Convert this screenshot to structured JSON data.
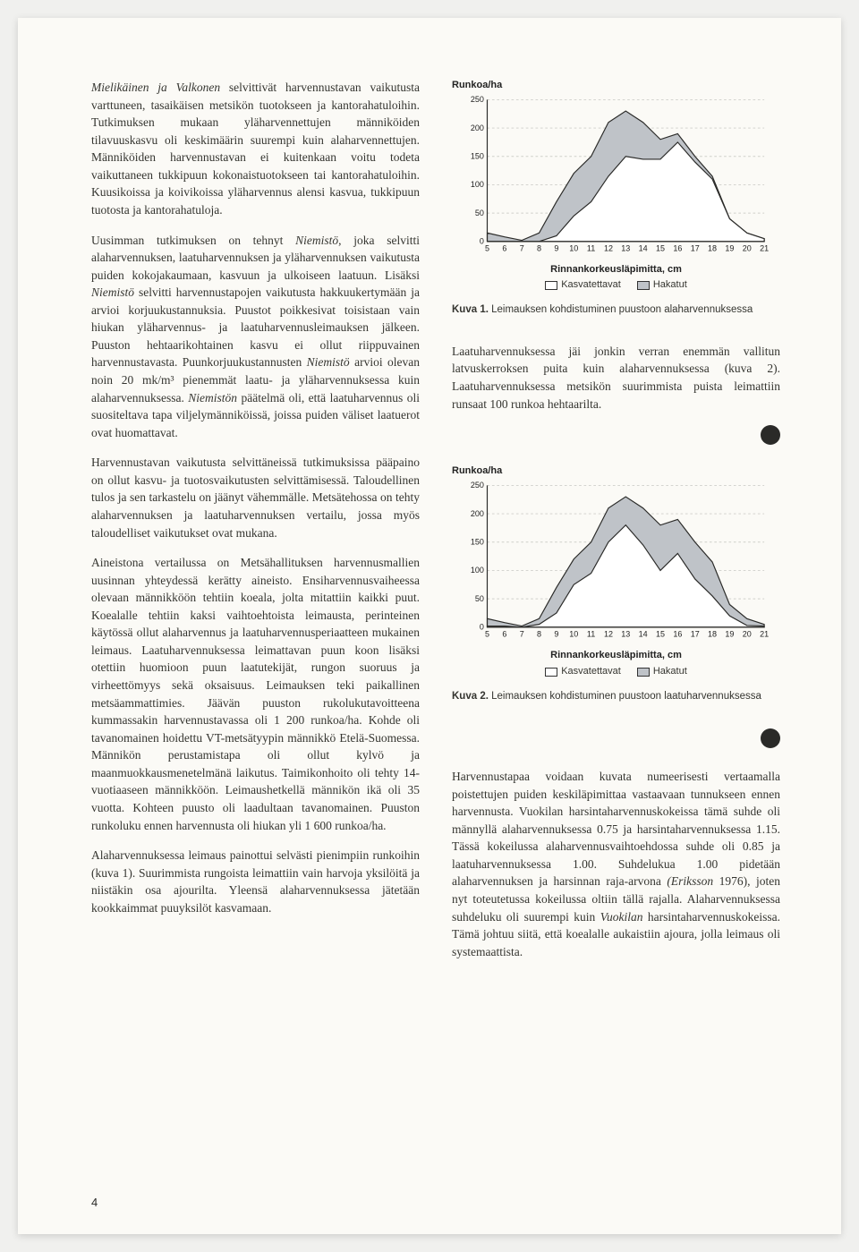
{
  "page_number": "4",
  "colors": {
    "page_bg": "#fbfaf6",
    "text": "#353530",
    "chart_fill_hakatut": "#bfc3c8",
    "chart_fill_kasvatettavat": "#ffffff",
    "chart_line": "#2a2a28",
    "grid": "#cfcfca"
  },
  "col1": {
    "p1_a": "Mielikäinen ja Valkonen",
    "p1_b": " selvittivät harvennustavan vaikutusta varttuneen, tasaikäisen metsikön tuotokseen ja kantorahatuloihin. Tutkimuksen mukaan yläharvennettujen männiköiden tilavuuskasvu oli keskimäärin suurempi kuin alaharvennettujen. Männiköiden harvennustavan ei kuitenkaan voitu todeta vaikuttaneen tukkipuun kokonaistuotokseen tai kantorahatuloihin. Kuusikoissa ja koivikoissa yläharvennus alensi kasvua, tukkipuun tuotosta ja kantorahatuloja.",
    "p2_a": "Uusimman tutkimuksen on tehnyt ",
    "p2_b": "Niemistö",
    "p2_c": ", joka selvitti alaharvennuksen, laatuharvennuksen ja yläharvennuksen vaikutusta puiden kokojakaumaan, kasvuun ja ulkoiseen laatuun. Lisäksi ",
    "p2_d": "Niemistö",
    "p2_e": " selvitti harvennustapojen vaikutusta hakkuukertymään ja arvioi korjuukustannuksia. Puustot poikkesivat toisistaan vain hiukan yläharvennus- ja laatuharvennusleimauksen jälkeen. Puuston hehtaarikohtainen kasvu ei ollut riippuvainen harvennustavasta. Puunkorjuukustannusten ",
    "p2_f": "Niemistö",
    "p2_g": " arvioi olevan noin 20 mk/m³ pienemmät laatu- ja yläharvennuksessa kuin alaharvennuksessa. ",
    "p2_h": "Niemistön",
    "p2_i": " päätelmä oli, että laatuharvennus oli suositeltava tapa viljelymänniköissä, joissa puiden väliset laatuerot ovat huomattavat.",
    "p3": "Harvennustavan vaikutusta selvittäneissä tutkimuksissa pääpaino on ollut kasvu- ja tuotosvaikutusten selvittämisessä. Taloudellinen tulos ja sen tarkastelu on jäänyt vähemmälle. Metsätehossa on tehty alaharvennuksen ja laatuharvennuksen vertailu, jossa myös taloudelliset vaikutukset ovat mukana.",
    "p4": "Aineistona vertailussa on Metsähallituksen harvennusmallien uusinnan yhteydessä kerätty aineisto. Ensiharvennusvaiheessa olevaan männikköön tehtiin koeala, jolta mitattiin kaikki puut. Koealalle tehtiin kaksi vaihtoehtoista leimausta, perinteinen käytössä ollut alaharvennus ja laatuharvennusperiaatteen mukainen leimaus. Laatuharvennuksessa leimattavan puun koon lisäksi otettiin huomioon puun laatutekijät, rungon suoruus ja virheettömyys sekä oksaisuus. Leimauksen teki paikallinen metsäammattimies. Jäävän puuston rukolukutavoitteena kummassakin harvennustavassa oli 1 200 runkoa/ha. Kohde oli tavanomainen hoidettu VT-metsätyypin männikkö Etelä-Suomessa. Männikön perustamistapa oli ollut kylvö ja maanmuokkausmenetelmänä laikutus. Taimikonhoito oli tehty 14-vuotiaaseen männikköön. Leimaushetkellä männikön ikä oli 35 vuotta. Kohteen puusto oli laadultaan tavanomainen. Puuston runkoluku ennen harvennusta oli hiukan yli 1 600 runkoa/ha.",
    "p5": "Alaharvennuksessa leimaus painottui selvästi pienimpiin runkoihin (kuva 1). Suurimmista rungoista leimattiin vain harvoja yksilöitä ja niistäkin osa ajourilta. Yleensä alaharvennuksessa jätetään kookkaimmat puuyksilöt kasvamaan."
  },
  "col2": {
    "p1": "Laatuharvennuksessa jäi jonkin verran enemmän vallitun latvuskerroksen puita kuin alaharvennuksessa (kuva 2). Laatuharvennuksessa metsikön suurimmista puista leimattiin runsaat 100 runkoa hehtaarilta.",
    "p2_a": "Harvennustapaa voidaan kuvata numeerisesti vertaamalla poistettujen puiden keskiläpimittaa vastaavaan tunnukseen ennen harvennusta. Vuokilan harsintaharvennuskokeissa tämä suhde oli männyllä alaharvennuksessa 0.75 ja harsintaharvennuksessa 1.15. Tässä kokeilussa alaharvennusvaihtoehdossa suhde oli 0.85 ja laatuharvennuksessa 1.00. Suhdelukua 1.00 pidetään alaharvennuksen ja harsinnan raja-arvona ",
    "p2_b": "(Eriksson",
    "p2_c": " 1976), joten nyt toteutetussa kokeilussa oltiin tällä rajalla. Alaharvennuksessa suhdeluku oli suurempi kuin ",
    "p2_d": "Vuokilan",
    "p2_e": " harsintaharvennuskokeissa. Tämä johtuu siitä, että koealalle aukaistiin ajoura, jolla leimaus oli systemaattista."
  },
  "charts": {
    "y_label": "Runkoa/ha",
    "x_label": "Rinnankorkeusläpimitta, cm",
    "legend_kasvatettavat": "Kasvatettavat",
    "legend_hakatut": "Hakatut",
    "x_ticks": [
      5,
      6,
      7,
      8,
      9,
      10,
      11,
      12,
      13,
      14,
      15,
      16,
      17,
      18,
      19,
      20,
      21
    ],
    "y_ticks": [
      0,
      50,
      100,
      150,
      200,
      250
    ],
    "y_max": 250,
    "chart1": {
      "caption_b": "Kuva 1.",
      "caption": "Leimauksen kohdistuminen puustoon alaharvennuksessa",
      "hakatut": [
        15,
        8,
        2,
        15,
        70,
        120,
        150,
        210,
        230,
        210,
        180,
        190,
        150,
        115,
        40,
        15,
        5
      ],
      "kasvatettavat": [
        0,
        0,
        0,
        0,
        10,
        45,
        70,
        115,
        150,
        145,
        145,
        175,
        140,
        110,
        40,
        15,
        5
      ]
    },
    "chart2": {
      "caption_b": "Kuva 2.",
      "caption": "Leimauksen kohdistuminen puustoon laatuharvennuksessa",
      "hakatut": [
        15,
        8,
        2,
        15,
        70,
        120,
        150,
        210,
        230,
        210,
        180,
        190,
        150,
        115,
        40,
        15,
        5
      ],
      "kasvatettavat": [
        2,
        2,
        0,
        5,
        25,
        75,
        95,
        150,
        180,
        145,
        100,
        130,
        85,
        55,
        20,
        3,
        2
      ]
    }
  }
}
